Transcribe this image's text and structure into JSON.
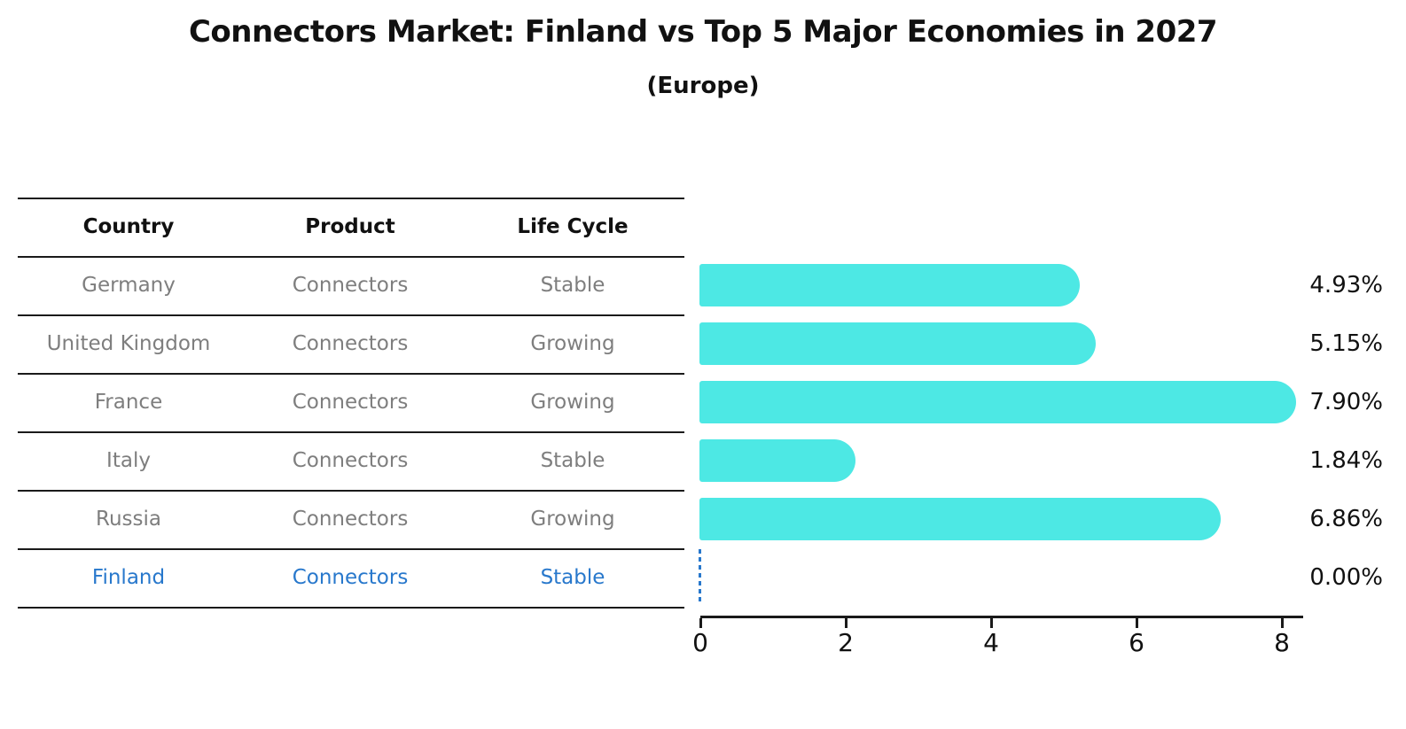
{
  "title": "Connectors Market: Finland vs Top 5 Major Economies in 2027",
  "subtitle": "(Europe)",
  "table": {
    "headers": [
      "Country",
      "Product",
      "Life Cycle"
    ],
    "rows": [
      {
        "country": "Germany",
        "product": "Connectors",
        "life_cycle": "Stable",
        "highlighted": false
      },
      {
        "country": "United Kingdom",
        "product": "Connectors",
        "life_cycle": "Growing",
        "highlighted": false
      },
      {
        "country": "France",
        "product": "Connectors",
        "life_cycle": "Growing",
        "highlighted": false
      },
      {
        "country": "Italy",
        "product": "Connectors",
        "life_cycle": "Stable",
        "highlighted": false
      },
      {
        "country": "Russia",
        "product": "Connectors",
        "life_cycle": "Growing",
        "highlighted": false
      },
      {
        "country": "Finland",
        "product": "Connectors",
        "life_cycle": "Stable",
        "highlighted": true
      }
    ]
  },
  "chart_data": {
    "type": "bar",
    "orientation": "horizontal",
    "title": "Connectors Market: Finland vs Top 5 Major Economies in 2027",
    "subtitle": "(Europe)",
    "categories": [
      "Germany",
      "United Kingdom",
      "France",
      "Italy",
      "Russia",
      "Finland"
    ],
    "values": [
      4.93,
      5.15,
      7.9,
      1.84,
      6.86,
      0.0
    ],
    "value_labels": [
      "4.93%",
      "5.15%",
      "7.90%",
      "1.84%",
      "6.86%",
      "0.00%"
    ],
    "xlabel": "",
    "ylabel": "",
    "xlim": [
      0,
      8.3
    ],
    "xticks": [
      0,
      2,
      4,
      6,
      8
    ],
    "grid": false,
    "legend": false,
    "bar_color": "#4de8e4",
    "highlight_color": "#2878cc",
    "zero_marker": "dashed-line"
  }
}
